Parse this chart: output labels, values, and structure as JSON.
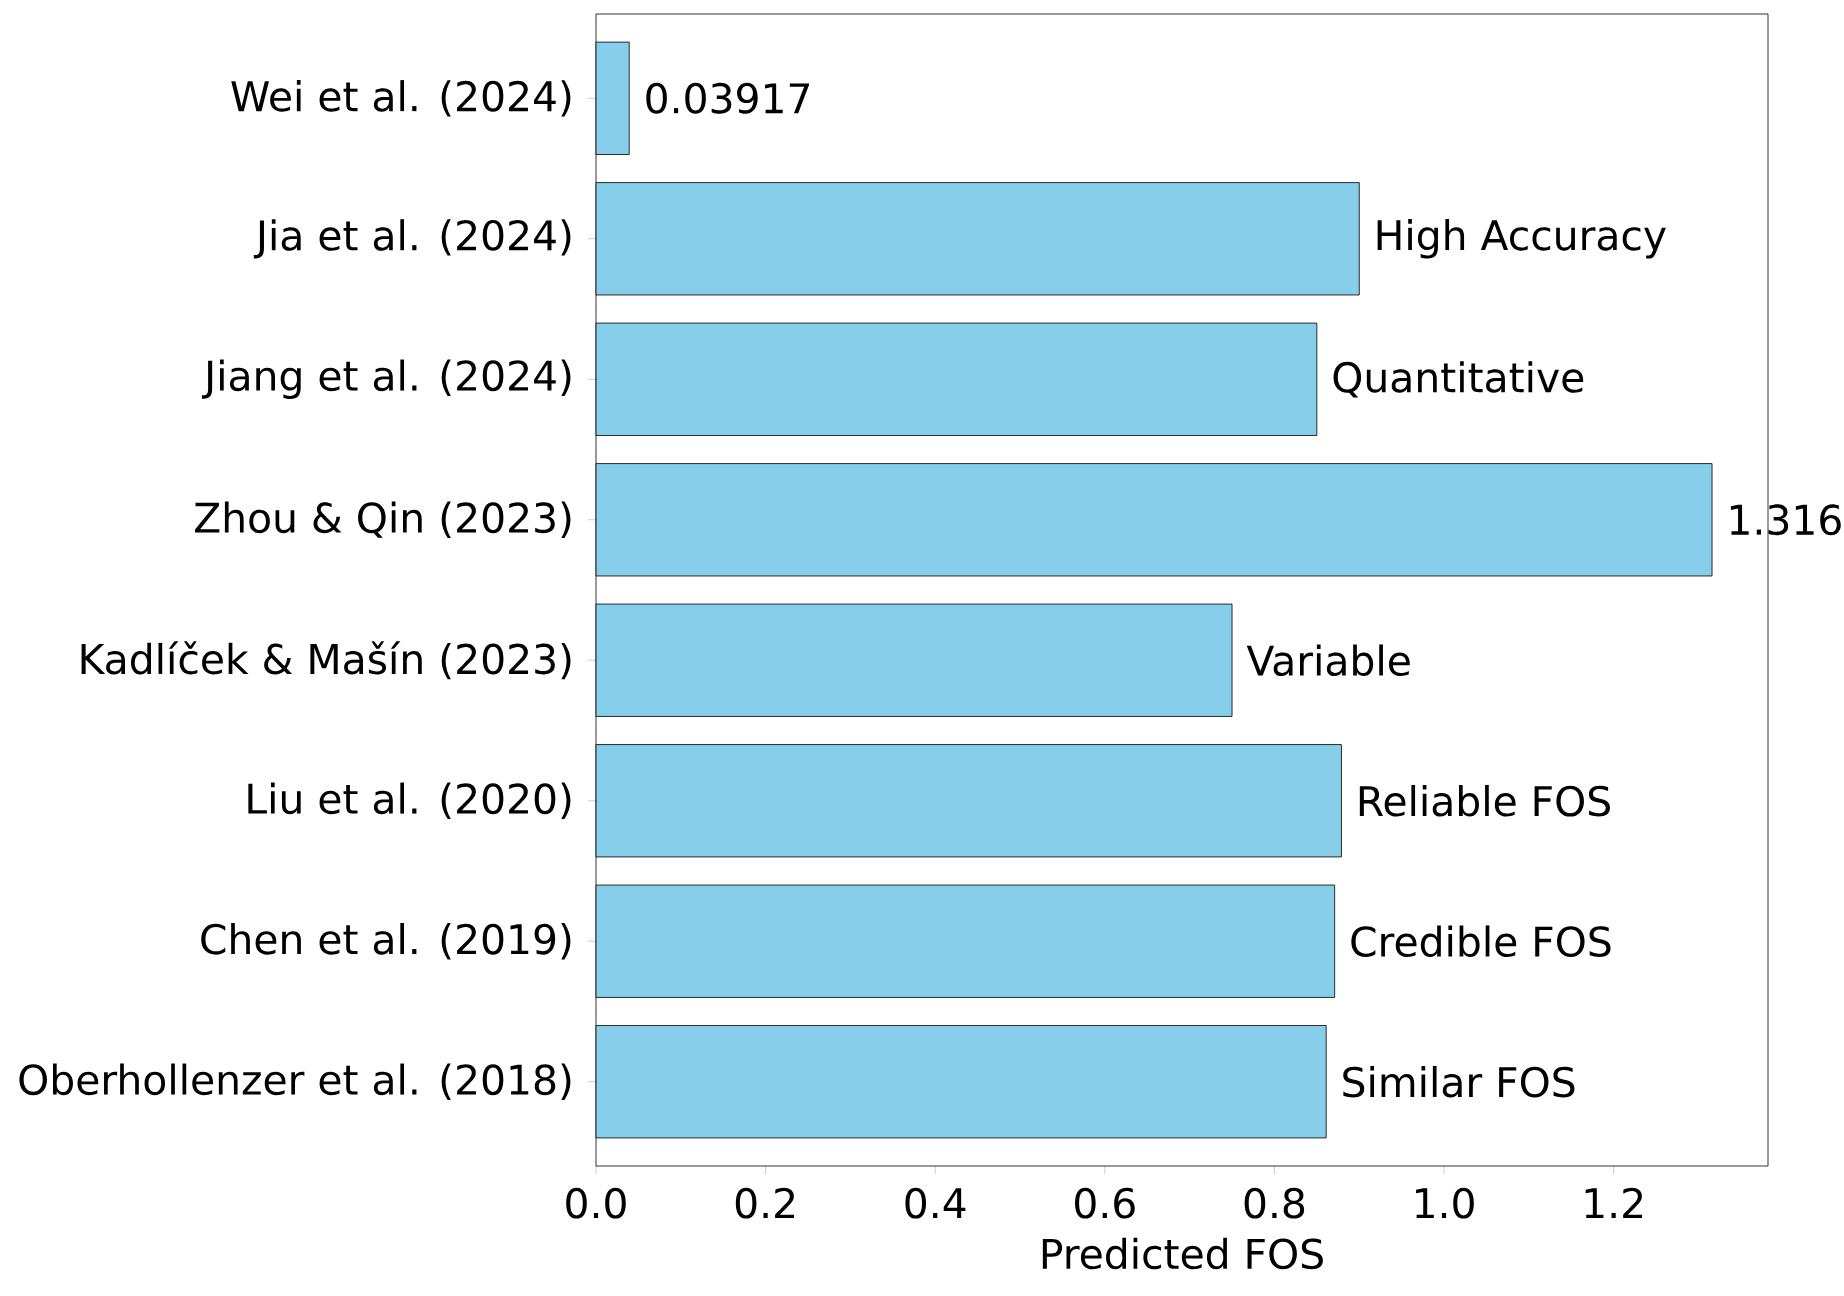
{
  "chart_data": {
    "type": "bar",
    "orientation": "horizontal",
    "xlabel": "Predicted FOS",
    "categories": [
      "Wei et al. (2024)",
      "Jia et al. (2024)",
      "Jiang et al. (2024)",
      "Zhou & Qin (2023)",
      "Kadlíček & Mašín (2023)",
      "Liu et al. (2020)",
      "Chen et al. (2019)",
      "Oberhollenzer et al. (2018)"
    ],
    "values": [
      0.03917,
      0.9,
      0.85,
      1.316,
      0.75,
      0.879,
      0.871,
      0.861
    ],
    "value_labels": [
      "0.03917",
      "High Accuracy",
      "Quantitative",
      "1.316",
      "Variable",
      "Reliable FOS",
      "Credible FOS",
      "Similar FOS"
    ],
    "color": "#87ceeb",
    "xlim": [
      0,
      1.382
    ],
    "xticks": [
      {
        "value": 0,
        "label": "0.0"
      },
      0.2,
      0.4,
      0.6,
      0.8,
      {
        "value": 1,
        "label": "1.0"
      },
      1.2
    ]
  }
}
